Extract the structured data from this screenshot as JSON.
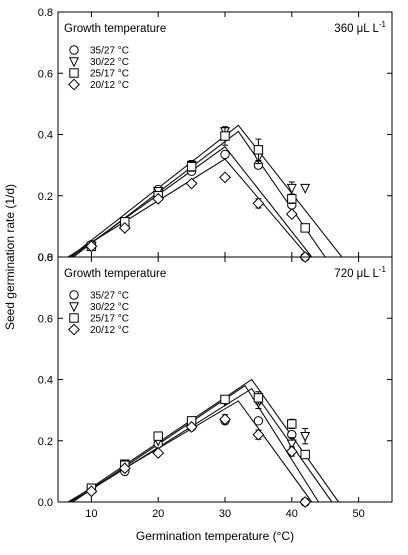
{
  "chart_data": {
    "type": "scatter",
    "xlabel": "Germination temperature (°C)",
    "ylabel": "Seed germination rate (1/d)",
    "xlim": [
      5,
      55
    ],
    "ylim": [
      0,
      0.8
    ],
    "x_ticks": [
      "10",
      "20",
      "30",
      "40",
      "50"
    ],
    "y_ticks": [
      "0.0",
      "0.2",
      "0.4",
      "0.6",
      "0.8"
    ],
    "grid": false,
    "legend_title": "Growth temperature",
    "legend_position": "top-left",
    "panels": [
      {
        "co2_label": "360 μL L",
        "co2_exponent": "-1",
        "series": [
          {
            "name": "35/27 °C",
            "marker": "circle",
            "x": [
              10,
              15,
              20,
              25,
              30,
              35,
              40,
              42
            ],
            "y": [
              0.04,
              0.11,
              0.22,
              0.28,
              0.335,
              0.3,
              0.17,
              0.0
            ],
            "fit": {
              "start": 7.0,
              "peak": [
                30,
                0.36
              ],
              "end": 43
            }
          },
          {
            "name": "30/22 °C",
            "marker": "triangle-down",
            "x": [
              10,
              15,
              20,
              25,
              30,
              35,
              40,
              42
            ],
            "y": [
              0.035,
              0.115,
              0.215,
              0.3,
              0.41,
              0.325,
              0.225,
              0.225
            ],
            "err": [
              0,
              0,
              0,
              0.015,
              0.015,
              0.02,
              0.02,
              0
            ],
            "fit": {
              "start": 6.8,
              "peak": [
                32,
                0.43
              ],
              "end": 47.5
            }
          },
          {
            "name": "25/17 °C",
            "marker": "square",
            "x": [
              10,
              15,
              20,
              25,
              30,
              35,
              40,
              42
            ],
            "y": [
              0.035,
              0.115,
              0.2,
              0.295,
              0.395,
              0.35,
              0.19,
              0.095
            ],
            "err": [
              0,
              0,
              0,
              0.015,
              0.03,
              0.035,
              0.015,
              0
            ],
            "fit": {
              "start": 7.3,
              "peak": [
                32,
                0.41
              ],
              "end": 45
            }
          },
          {
            "name": "20/12 °C",
            "marker": "diamond",
            "x": [
              10,
              15,
              20,
              25,
              30,
              35,
              40,
              42
            ],
            "y": [
              0.035,
              0.095,
              0.19,
              0.24,
              0.26,
              0.175,
              0.14,
              0.0
            ],
            "err": [
              0,
              0,
              0,
              0,
              0,
              0.015,
              0,
              0
            ],
            "fit": {
              "start": 6.5,
              "peak": [
                30,
                0.32
              ],
              "end": 42.5
            }
          }
        ]
      },
      {
        "co2_label": "720 μL L",
        "co2_exponent": "-1",
        "series": [
          {
            "name": "35/27 °C",
            "marker": "circle",
            "x": [
              10,
              15,
              20,
              25,
              30,
              35,
              40,
              42
            ],
            "y": [
              0.04,
              0.1,
              0.19,
              0.245,
              0.265,
              0.265,
              0.22,
              0.0
            ],
            "fit": {
              "start": 7.0,
              "peak": [
                34,
                0.37
              ],
              "end": 46
            }
          },
          {
            "name": "30/22 °C",
            "marker": "triangle-down",
            "x": [
              10,
              15,
              20,
              25,
              30,
              35,
              40,
              42
            ],
            "y": [
              0.035,
              0.125,
              0.2,
              0.255,
              0.33,
              0.325,
              0.19,
              0.215
            ],
            "err": [
              0,
              0,
              0,
              0,
              0,
              0.02,
              0.02,
              0.025
            ],
            "fit": {
              "start": 6.8,
              "peak": [
                34,
                0.4
              ],
              "end": 47
            }
          },
          {
            "name": "25/17 °C",
            "marker": "square",
            "x": [
              10,
              15,
              20,
              25,
              30,
              35,
              40,
              42
            ],
            "y": [
              0.045,
              0.12,
              0.215,
              0.265,
              0.335,
              0.34,
              0.255,
              0.155
            ],
            "err": [
              0,
              0,
              0,
              0,
              0,
              0.02,
              0.015,
              0
            ],
            "fit": {
              "start": 7.2,
              "peak": [
                33,
                0.38
              ],
              "end": 44
            }
          },
          {
            "name": "20/12 °C",
            "marker": "diamond",
            "x": [
              10,
              15,
              20,
              25,
              30,
              35,
              40,
              42
            ],
            "y": [
              0.035,
              0.11,
              0.16,
              0.245,
              0.27,
              0.22,
              0.165,
              0.0
            ],
            "err": [
              0,
              0,
              0,
              0,
              0.015,
              0.015,
              0.015,
              0
            ],
            "fit": {
              "start": 6.5,
              "peak": [
                32,
                0.33
              ],
              "end": 43
            }
          }
        ]
      }
    ]
  }
}
